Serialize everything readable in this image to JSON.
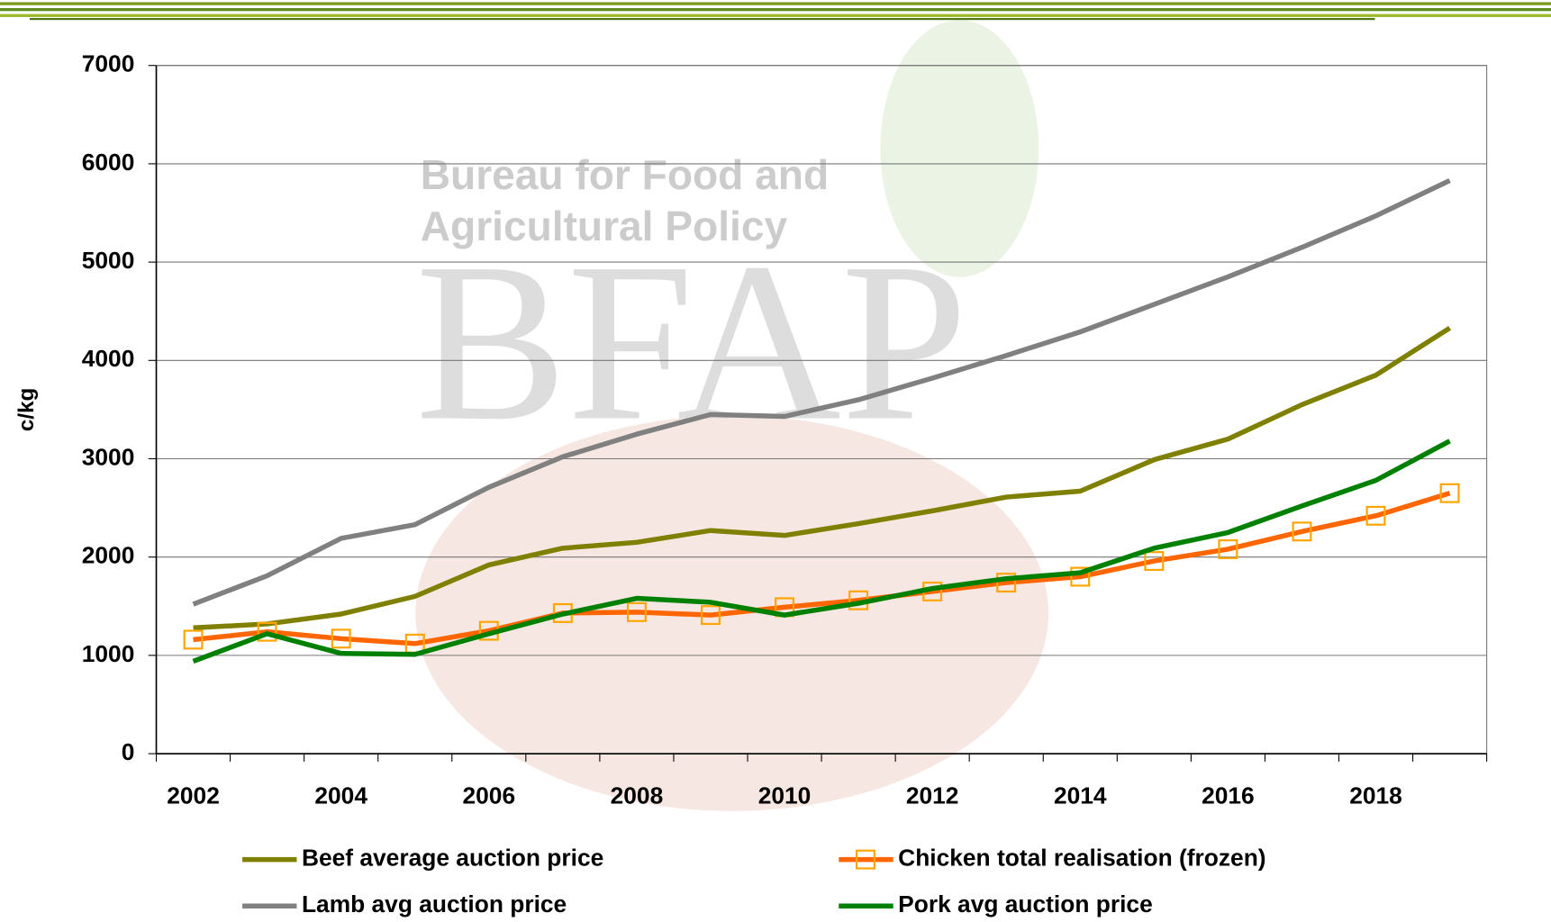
{
  "chart_data": {
    "type": "line",
    "watermark": [
      "Bureau for Food and",
      "Agricultural Policy",
      "BFAP"
    ],
    "y_label": "c/kg",
    "categories": [
      "2002",
      null,
      "2004",
      null,
      "2006",
      null,
      "2008",
      null,
      "2010",
      null,
      "2012",
      null,
      "2014",
      null,
      "2016",
      null,
      "2018",
      null
    ],
    "ylim": [
      0,
      7000
    ],
    "yticks": [
      0,
      1000,
      2000,
      3000,
      4000,
      5000,
      6000,
      7000
    ],
    "grid": true,
    "legend": "bottom",
    "series": [
      {
        "name": "Beef average auction price",
        "color": "#808000",
        "values": [
          1280,
          1320,
          1420,
          1600,
          1920,
          2090,
          2150,
          2270,
          2220,
          2340,
          2470,
          2610,
          2670,
          2990,
          3200,
          3550,
          3850,
          4330
        ]
      },
      {
        "name": "Chicken total realisation (frozen)",
        "color": "#ff6600",
        "marker": "square",
        "marker_color": "#ffa500",
        "values": [
          1160,
          1240,
          1170,
          1120,
          1250,
          1430,
          1440,
          1410,
          1490,
          1560,
          1650,
          1740,
          1800,
          1960,
          2080,
          2260,
          2420,
          2650
        ]
      },
      {
        "name": "Lamb avg auction price",
        "color": "#808080",
        "values": [
          1520,
          1810,
          2190,
          2330,
          2710,
          3020,
          3250,
          3450,
          3430,
          3600,
          3820,
          4050,
          4290,
          4570,
          4850,
          5150,
          5470,
          5830
        ]
      },
      {
        "name": "Pork avg auction price",
        "color": "#008000",
        "values": [
          940,
          1220,
          1020,
          1010,
          1220,
          1420,
          1580,
          1540,
          1410,
          1530,
          1680,
          1780,
          1840,
          2090,
          2250,
          2520,
          2780,
          3180
        ]
      }
    ]
  }
}
